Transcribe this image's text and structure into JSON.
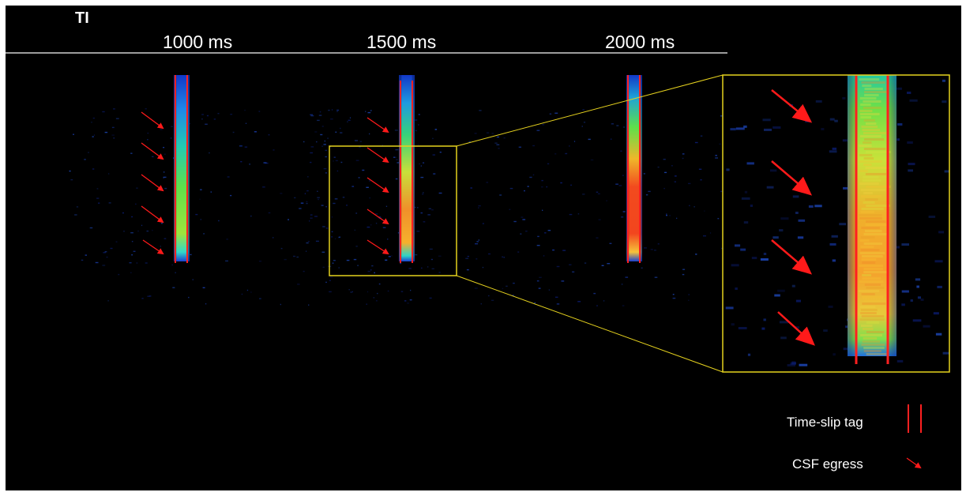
{
  "header": {
    "row_label": "TI",
    "columns": [
      {
        "label": "1000 ms"
      },
      {
        "label": "1500 ms"
      },
      {
        "label": "2000 ms"
      }
    ]
  },
  "legend": {
    "items": [
      {
        "label": "Time-slip tag",
        "symbol": "tag-lines-icon"
      },
      {
        "label": "CSF egress",
        "symbol": "red-arrow-icon"
      }
    ]
  },
  "colors": {
    "background": "#000000",
    "tag_lines": "#ff2020",
    "arrows": "#ff1a1a",
    "zoom_box": "#e6d21e",
    "text": "#ffffff"
  }
}
